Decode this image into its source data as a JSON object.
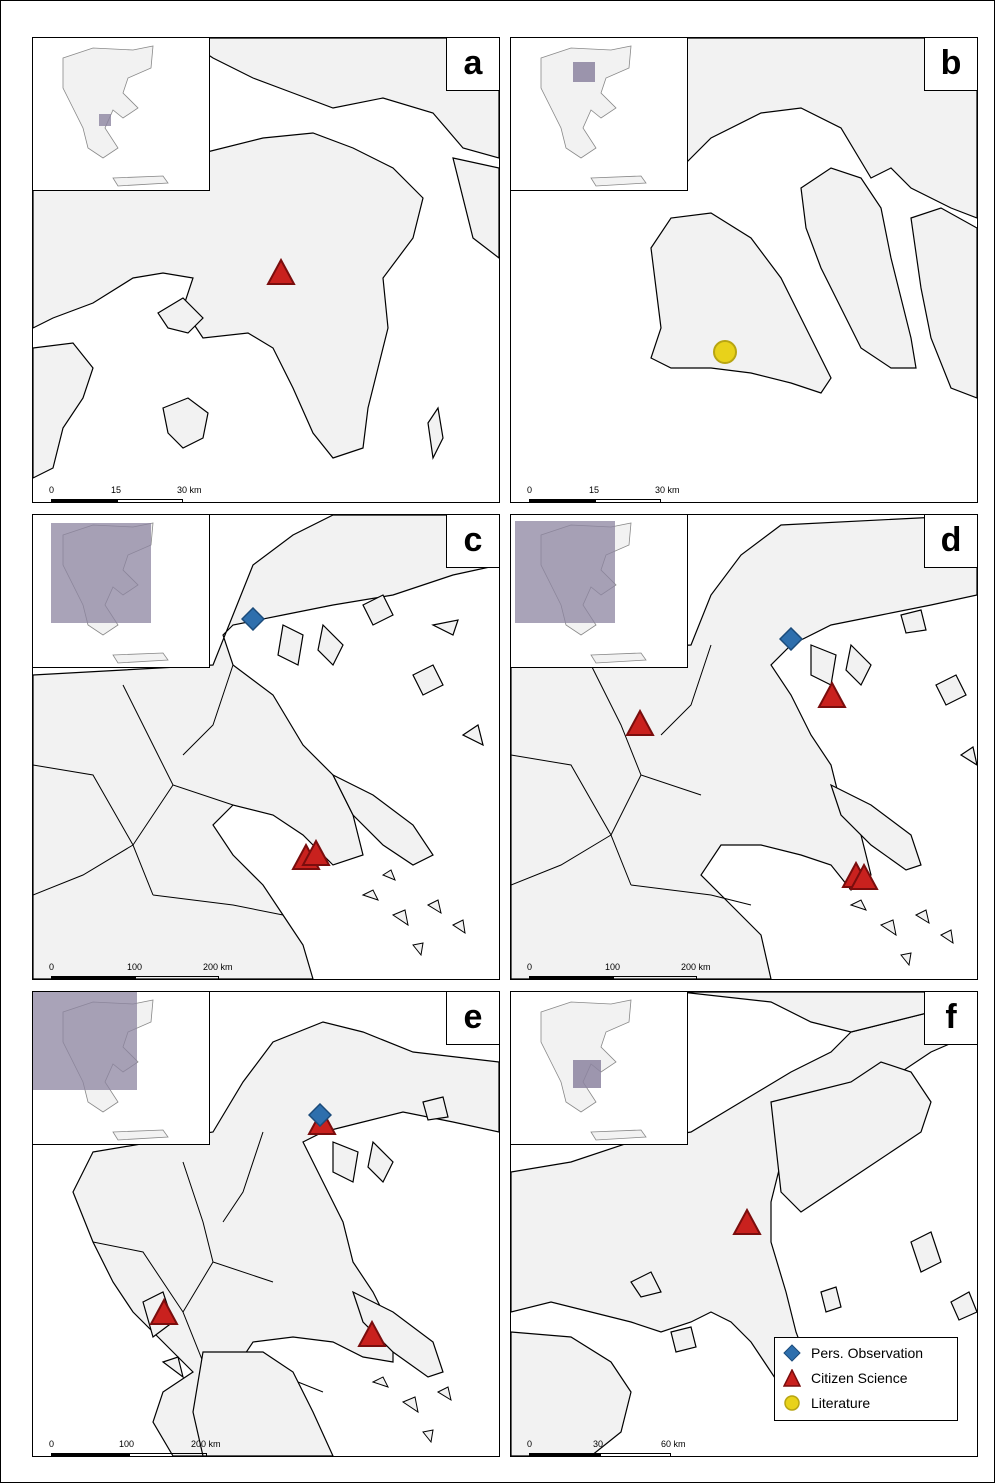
{
  "colors": {
    "land": "#f2f2f2",
    "sea": "#ffffff",
    "border": "#000000",
    "inset_highlight": "#8c84a0",
    "pers_observation": "#2e6fad",
    "citizen_science": "#c9211e",
    "citizen_science_outline": "#7a0d0d",
    "literature": "#e8d21a",
    "literature_outline": "#b8a512"
  },
  "panels": [
    {
      "letter": "a",
      "scale": {
        "labels": [
          "0",
          "15",
          "30 km"
        ]
      }
    },
    {
      "letter": "b",
      "scale": {
        "labels": [
          "0",
          "15",
          "30 km"
        ]
      }
    },
    {
      "letter": "c",
      "scale": {
        "labels": [
          "0",
          "100",
          "200 km"
        ]
      }
    },
    {
      "letter": "d",
      "scale": {
        "labels": [
          "0",
          "100",
          "200 km"
        ]
      }
    },
    {
      "letter": "e",
      "scale": {
        "labels": [
          "0",
          "100",
          "200 km"
        ]
      }
    },
    {
      "letter": "f",
      "scale": {
        "labels": [
          "0",
          "30",
          "60 km"
        ]
      }
    }
  ],
  "legend": {
    "items": [
      {
        "symbol": "diamond-icon",
        "label": "Pers. Observation"
      },
      {
        "symbol": "triangle-icon",
        "label": "Citizen Science"
      },
      {
        "symbol": "circle-icon",
        "label": "Literature"
      }
    ]
  }
}
